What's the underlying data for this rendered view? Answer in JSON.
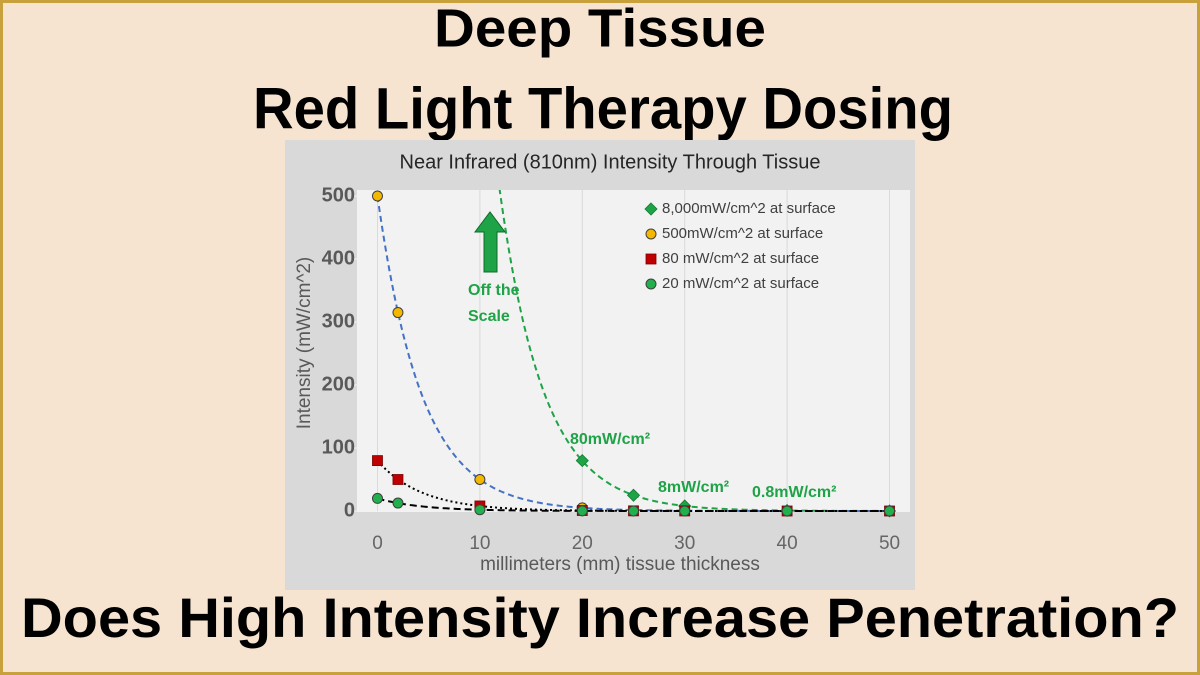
{
  "header": {
    "title_lines": [
      "Deep Tissue",
      "Red Light Therapy Dosing"
    ],
    "question": "Does High Intensity Increase Penetration?"
  },
  "chart_data": {
    "type": "scatter",
    "title": "Near Infrared (810nm) Intensity Through Tissue",
    "x_label": "millimeters (mm) tissue thickness",
    "y_label": "Intensity (mW/cm^2)",
    "xlim": [
      -2,
      52
    ],
    "ylim": [
      0,
      500
    ],
    "xticks": [
      0,
      10,
      20,
      30,
      40,
      50
    ],
    "yticks": [
      0,
      100,
      200,
      300,
      400,
      500
    ],
    "grid": "x",
    "legend": "top-right",
    "trendline": "exponential",
    "annotations": [
      "Off the Scale",
      "80mW/cm²",
      "8mW/cm²",
      "0.8mW/cm²"
    ],
    "series": [
      {
        "name": "8,000mW/cm^2 at surface",
        "color": "#1fa347",
        "marker": "diamond",
        "line_color": "#1fa347",
        "line_dash": "6,4",
        "x": [
          20,
          25,
          30,
          40,
          50
        ],
        "values": [
          80,
          25,
          8,
          0.8,
          0.08
        ]
      },
      {
        "name": "500mW/cm^2 at surface",
        "color": "#f5b800",
        "marker": "circle",
        "line_color": "#4472c4",
        "line_dash": "6,4",
        "x": [
          0,
          2,
          10,
          20,
          30,
          40,
          50
        ],
        "values": [
          500,
          315,
          50,
          5,
          0.5,
          0.05,
          0.005
        ]
      },
      {
        "name": "80 mW/cm^2 at surface",
        "color": "#c00000",
        "marker": "square",
        "line_color": "#000000",
        "line_dash": "2,3",
        "x": [
          0,
          2,
          10,
          20,
          25,
          30,
          40,
          50
        ],
        "values": [
          80,
          50,
          8,
          0.8,
          0.25,
          0.08,
          0.008,
          0.0008
        ]
      },
      {
        "name": "20 mW/cm^2 at surface",
        "color": "#22b04c",
        "marker": "circle",
        "line_color": "#000000",
        "line_dash": "7,4",
        "x": [
          0,
          2,
          10,
          20,
          25,
          30,
          40,
          50
        ],
        "values": [
          20,
          12.6,
          2,
          0.2,
          0.06,
          0.02,
          0.002,
          0.0002
        ]
      }
    ]
  }
}
